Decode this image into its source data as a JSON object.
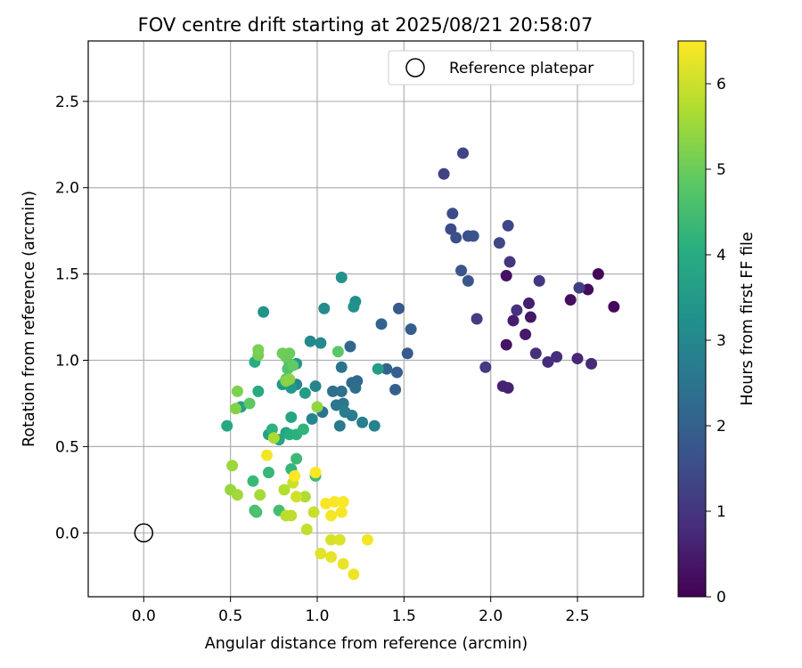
{
  "chart_data": {
    "type": "scatter",
    "title": "FOV centre drift starting at 2025/08/21 20:58:07",
    "xlabel": "Angular distance from reference (arcmin)",
    "ylabel": "Rotation from reference (arcmin)",
    "xlim": [
      -0.32,
      2.88
    ],
    "ylim": [
      -0.37,
      2.85
    ],
    "xticks": [
      "0.0",
      "0.5",
      "1.0",
      "1.5",
      "2.0",
      "2.5"
    ],
    "yticks": [
      "0.0",
      "0.5",
      "1.0",
      "1.5",
      "2.0",
      "2.5"
    ],
    "grid": true,
    "legend": {
      "position": "top-right",
      "entries": [
        "Reference platepar"
      ]
    },
    "reference_point": {
      "x": 0.0,
      "y": 0.0,
      "marker": "open-circle",
      "color": "#000000"
    },
    "colorbar": {
      "label": "Hours from first FF file",
      "range": [
        0,
        6.5
      ],
      "ticks": [
        "0",
        "1",
        "2",
        "3",
        "4",
        "5",
        "6"
      ],
      "colormap": "viridis"
    },
    "series": [
      {
        "marker": "filled-circle",
        "color_by": "hours",
        "points": [
          {
            "x": 2.62,
            "y": 1.5,
            "h": 0.1
          },
          {
            "x": 2.71,
            "y": 1.31,
            "h": 0.15
          },
          {
            "x": 2.56,
            "y": 1.41,
            "h": 0.2
          },
          {
            "x": 2.46,
            "y": 1.35,
            "h": 0.25
          },
          {
            "x": 2.09,
            "y": 1.49,
            "h": 0.3
          },
          {
            "x": 2.09,
            "y": 1.09,
            "h": 0.35
          },
          {
            "x": 2.23,
            "y": 1.25,
            "h": 0.4
          },
          {
            "x": 2.2,
            "y": 1.15,
            "h": 0.45
          },
          {
            "x": 2.13,
            "y": 1.23,
            "h": 0.5
          },
          {
            "x": 2.22,
            "y": 1.33,
            "h": 0.55
          },
          {
            "x": 2.1,
            "y": 0.84,
            "h": 0.6
          },
          {
            "x": 2.07,
            "y": 0.85,
            "h": 0.65
          },
          {
            "x": 2.5,
            "y": 1.01,
            "h": 0.7
          },
          {
            "x": 2.58,
            "y": 0.98,
            "h": 0.75
          },
          {
            "x": 2.33,
            "y": 0.99,
            "h": 0.8
          },
          {
            "x": 2.38,
            "y": 1.02,
            "h": 0.85
          },
          {
            "x": 2.26,
            "y": 1.04,
            "h": 0.9
          },
          {
            "x": 2.15,
            "y": 1.29,
            "h": 0.95
          },
          {
            "x": 2.11,
            "y": 1.57,
            "h": 1.0
          },
          {
            "x": 2.28,
            "y": 1.46,
            "h": 1.05
          },
          {
            "x": 1.97,
            "y": 0.96,
            "h": 1.1
          },
          {
            "x": 1.92,
            "y": 1.24,
            "h": 1.15
          },
          {
            "x": 2.51,
            "y": 1.42,
            "h": 1.2
          },
          {
            "x": 1.73,
            "y": 2.08,
            "h": 1.25
          },
          {
            "x": 1.84,
            "y": 2.2,
            "h": 1.3
          },
          {
            "x": 2.1,
            "y": 1.78,
            "h": 1.35
          },
          {
            "x": 2.05,
            "y": 1.68,
            "h": 1.4
          },
          {
            "x": 1.78,
            "y": 1.85,
            "h": 1.45
          },
          {
            "x": 1.77,
            "y": 1.76,
            "h": 1.5
          },
          {
            "x": 1.8,
            "y": 1.71,
            "h": 1.55
          },
          {
            "x": 1.87,
            "y": 1.72,
            "h": 1.6
          },
          {
            "x": 1.9,
            "y": 1.72,
            "h": 1.65
          },
          {
            "x": 1.83,
            "y": 1.52,
            "h": 1.7
          },
          {
            "x": 1.87,
            "y": 1.46,
            "h": 1.75
          },
          {
            "x": 1.47,
            "y": 1.3,
            "h": 1.8
          },
          {
            "x": 1.52,
            "y": 1.04,
            "h": 1.85
          },
          {
            "x": 1.54,
            "y": 1.18,
            "h": 1.9
          },
          {
            "x": 1.46,
            "y": 0.93,
            "h": 1.95
          },
          {
            "x": 1.45,
            "y": 0.83,
            "h": 2.0
          },
          {
            "x": 1.37,
            "y": 1.21,
            "h": 2.05
          },
          {
            "x": 1.4,
            "y": 0.95,
            "h": 2.1
          },
          {
            "x": 1.19,
            "y": 1.08,
            "h": 2.15
          },
          {
            "x": 1.23,
            "y": 0.88,
            "h": 2.2
          },
          {
            "x": 1.2,
            "y": 0.87,
            "h": 2.25
          },
          {
            "x": 1.22,
            "y": 0.84,
            "h": 2.3
          },
          {
            "x": 1.09,
            "y": 0.82,
            "h": 2.35
          },
          {
            "x": 1.14,
            "y": 0.82,
            "h": 2.4
          },
          {
            "x": 1.14,
            "y": 0.96,
            "h": 2.45
          },
          {
            "x": 1.03,
            "y": 0.7,
            "h": 2.5
          },
          {
            "x": 1.11,
            "y": 0.74,
            "h": 2.55
          },
          {
            "x": 1.15,
            "y": 0.75,
            "h": 2.6
          },
          {
            "x": 1.13,
            "y": 0.62,
            "h": 2.65
          },
          {
            "x": 1.2,
            "y": 0.68,
            "h": 2.7
          },
          {
            "x": 1.16,
            "y": 0.7,
            "h": 2.75
          },
          {
            "x": 1.26,
            "y": 0.64,
            "h": 2.8
          },
          {
            "x": 1.33,
            "y": 0.62,
            "h": 2.85
          },
          {
            "x": 0.99,
            "y": 0.85,
            "h": 2.9
          },
          {
            "x": 0.88,
            "y": 0.86,
            "h": 2.95
          },
          {
            "x": 0.97,
            "y": 0.66,
            "h": 3.0
          },
          {
            "x": 0.96,
            "y": 1.11,
            "h": 3.05
          },
          {
            "x": 1.02,
            "y": 1.1,
            "h": 3.1
          },
          {
            "x": 1.04,
            "y": 1.3,
            "h": 3.15
          },
          {
            "x": 1.22,
            "y": 1.34,
            "h": 3.2
          },
          {
            "x": 1.21,
            "y": 1.31,
            "h": 3.25
          },
          {
            "x": 1.14,
            "y": 1.48,
            "h": 3.3
          },
          {
            "x": 0.69,
            "y": 1.28,
            "h": 3.35
          },
          {
            "x": 0.88,
            "y": 0.98,
            "h": 3.4
          },
          {
            "x": 0.8,
            "y": 0.86,
            "h": 3.45
          },
          {
            "x": 0.85,
            "y": 0.84,
            "h": 3.5
          },
          {
            "x": 0.93,
            "y": 0.81,
            "h": 3.55
          },
          {
            "x": 1.35,
            "y": 0.95,
            "h": 3.6
          },
          {
            "x": 0.56,
            "y": 0.73,
            "h": 3.65
          },
          {
            "x": 0.72,
            "y": 0.57,
            "h": 3.7
          },
          {
            "x": 0.82,
            "y": 0.58,
            "h": 3.75
          },
          {
            "x": 0.85,
            "y": 0.67,
            "h": 3.8
          },
          {
            "x": 0.78,
            "y": 0.54,
            "h": 3.85
          },
          {
            "x": 0.48,
            "y": 0.62,
            "h": 3.9
          },
          {
            "x": 0.66,
            "y": 0.82,
            "h": 3.95
          },
          {
            "x": 0.64,
            "y": 0.99,
            "h": 4.0
          },
          {
            "x": 0.84,
            "y": 0.57,
            "h": 4.05
          },
          {
            "x": 0.88,
            "y": 0.57,
            "h": 4.1
          },
          {
            "x": 0.74,
            "y": 0.6,
            "h": 4.15
          },
          {
            "x": 0.92,
            "y": 0.6,
            "h": 4.2
          },
          {
            "x": 0.85,
            "y": 0.37,
            "h": 4.25
          },
          {
            "x": 0.72,
            "y": 0.35,
            "h": 4.3
          },
          {
            "x": 0.63,
            "y": 0.3,
            "h": 4.35
          },
          {
            "x": 0.88,
            "y": 0.43,
            "h": 4.4
          },
          {
            "x": 0.99,
            "y": 0.33,
            "h": 4.45
          },
          {
            "x": 0.78,
            "y": 0.13,
            "h": 4.5
          },
          {
            "x": 0.64,
            "y": 0.13,
            "h": 4.55
          },
          {
            "x": 0.65,
            "y": 0.12,
            "h": 4.6
          },
          {
            "x": 0.84,
            "y": 0.98,
            "h": 4.65
          },
          {
            "x": 0.83,
            "y": 0.95,
            "h": 4.7
          },
          {
            "x": 0.82,
            "y": 0.89,
            "h": 4.75
          },
          {
            "x": 1.12,
            "y": 1.05,
            "h": 4.8
          },
          {
            "x": 0.61,
            "y": 0.75,
            "h": 4.85
          },
          {
            "x": 0.86,
            "y": 0.97,
            "h": 4.9
          },
          {
            "x": 0.82,
            "y": 1.02,
            "h": 4.95
          },
          {
            "x": 0.84,
            "y": 1.04,
            "h": 5.0
          },
          {
            "x": 0.8,
            "y": 1.04,
            "h": 5.05
          },
          {
            "x": 0.66,
            "y": 1.03,
            "h": 5.1
          },
          {
            "x": 0.66,
            "y": 1.06,
            "h": 5.15
          },
          {
            "x": 0.54,
            "y": 0.82,
            "h": 5.2
          },
          {
            "x": 0.53,
            "y": 0.72,
            "h": 5.25
          },
          {
            "x": 0.82,
            "y": 0.88,
            "h": 5.3
          },
          {
            "x": 0.84,
            "y": 0.89,
            "h": 5.35
          },
          {
            "x": 1.0,
            "y": 0.73,
            "h": 5.4
          },
          {
            "x": 0.5,
            "y": 0.25,
            "h": 5.45
          },
          {
            "x": 0.51,
            "y": 0.39,
            "h": 5.5
          },
          {
            "x": 0.54,
            "y": 0.22,
            "h": 5.55
          },
          {
            "x": 0.67,
            "y": 0.22,
            "h": 5.6
          },
          {
            "x": 0.75,
            "y": 0.55,
            "h": 5.65
          },
          {
            "x": 0.93,
            "y": 0.21,
            "h": 5.7
          },
          {
            "x": 0.81,
            "y": 0.25,
            "h": 5.75
          },
          {
            "x": 0.82,
            "y": 0.1,
            "h": 5.8
          },
          {
            "x": 0.85,
            "y": 0.1,
            "h": 5.85
          },
          {
            "x": 0.94,
            "y": 0.02,
            "h": 5.9
          },
          {
            "x": 0.98,
            "y": 0.12,
            "h": 5.95
          },
          {
            "x": 0.86,
            "y": 0.29,
            "h": 6.0
          },
          {
            "x": 0.88,
            "y": 0.21,
            "h": 6.05
          },
          {
            "x": 1.08,
            "y": -0.04,
            "h": 6.1
          },
          {
            "x": 1.13,
            "y": -0.04,
            "h": 6.15
          },
          {
            "x": 1.02,
            "y": -0.12,
            "h": 6.2
          },
          {
            "x": 1.08,
            "y": -0.14,
            "h": 6.25
          },
          {
            "x": 1.15,
            "y": -0.18,
            "h": 6.3
          },
          {
            "x": 1.21,
            "y": -0.24,
            "h": 6.35
          },
          {
            "x": 1.29,
            "y": -0.04,
            "h": 6.4
          },
          {
            "x": 1.08,
            "y": 0.1,
            "h": 6.42
          },
          {
            "x": 1.14,
            "y": 0.12,
            "h": 6.44
          },
          {
            "x": 1.05,
            "y": 0.17,
            "h": 6.45
          },
          {
            "x": 1.1,
            "y": 0.18,
            "h": 6.46
          },
          {
            "x": 1.15,
            "y": 0.18,
            "h": 6.47
          },
          {
            "x": 0.71,
            "y": 0.45,
            "h": 6.38
          },
          {
            "x": 0.87,
            "y": 0.33,
            "h": 6.48
          },
          {
            "x": 0.99,
            "y": 0.35,
            "h": 6.49
          }
        ]
      }
    ]
  }
}
